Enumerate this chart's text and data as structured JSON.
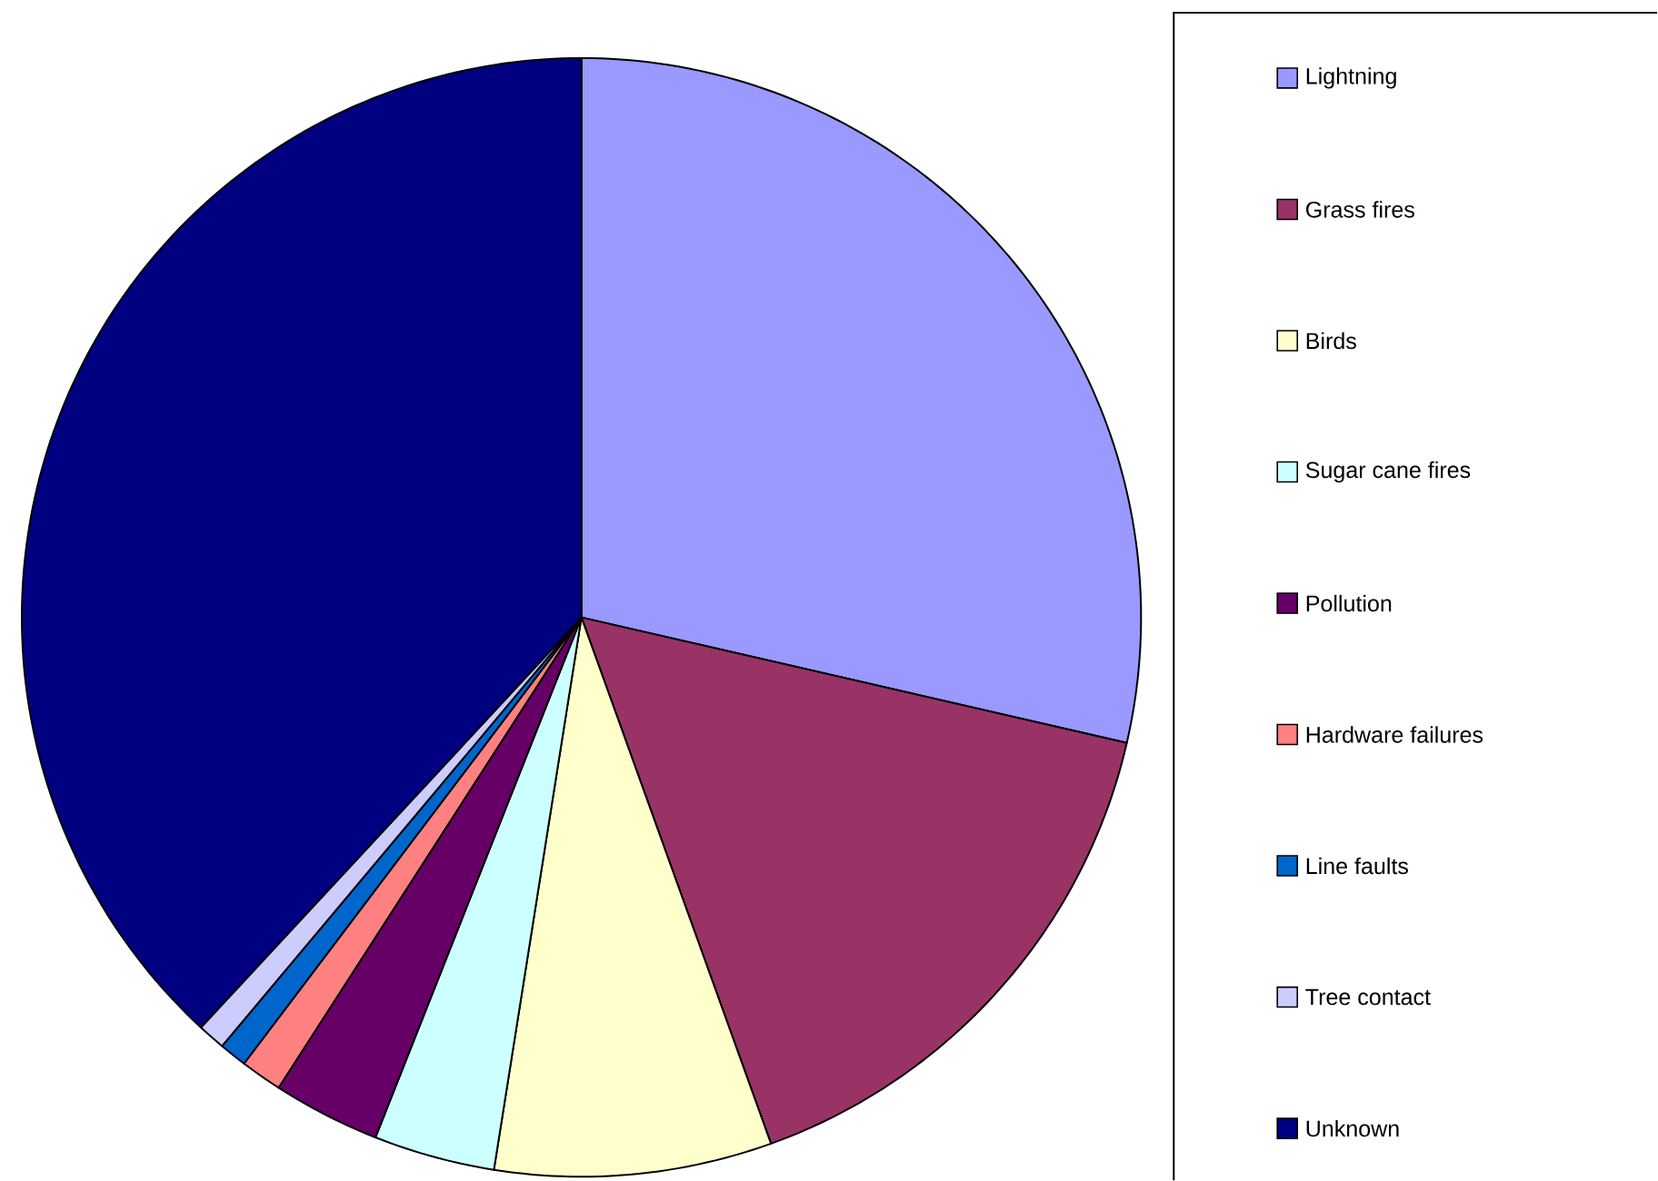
{
  "chart_data": {
    "type": "pie",
    "categories": [
      "Lightning",
      "Grass fires",
      "Birds",
      "Sugar cane fires",
      "Pollution",
      "Hardware failures",
      "Line faults",
      "Tree contact",
      "Unknown"
    ],
    "values": [
      28.6,
      15.9,
      8.0,
      3.5,
      3.1,
      1.2,
      0.8,
      0.8,
      38.1
    ],
    "colors": [
      "#9999ff",
      "#993366",
      "#ffffcc",
      "#ccffff",
      "#660066",
      "#ff8080",
      "#0066cc",
      "#ccccff",
      "#000080"
    ],
    "legend": "right"
  }
}
